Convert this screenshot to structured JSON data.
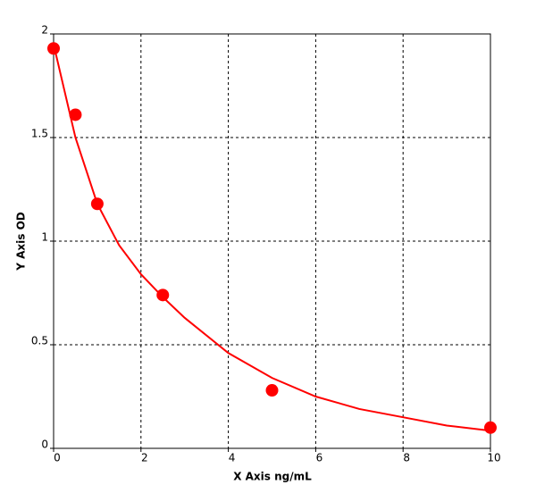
{
  "chart_data": {
    "type": "scatter",
    "x_label": "X Axis ng/mL",
    "y_label": "Y Axis OD",
    "x": [
      0,
      0.5,
      1,
      2.5,
      5,
      10
    ],
    "values": [
      1.93,
      1.61,
      1.18,
      0.74,
      0.28,
      0.1
    ],
    "color": "#ff0000",
    "curve": {
      "x": [
        0,
        0.5,
        1,
        1.5,
        2,
        2.5,
        3,
        4,
        5,
        6,
        7,
        8,
        9,
        10
      ],
      "values": [
        1.95,
        1.5,
        1.18,
        0.98,
        0.84,
        0.73,
        0.63,
        0.46,
        0.34,
        0.25,
        0.19,
        0.15,
        0.11,
        0.085
      ],
      "color": "#ff0000"
    },
    "xlim": [
      0,
      10
    ],
    "ylim": [
      0,
      2
    ],
    "xticks": [
      0,
      2,
      4,
      6,
      8,
      10
    ],
    "yticks": [
      0,
      0.5,
      1,
      1.5,
      2
    ],
    "grid": true
  }
}
